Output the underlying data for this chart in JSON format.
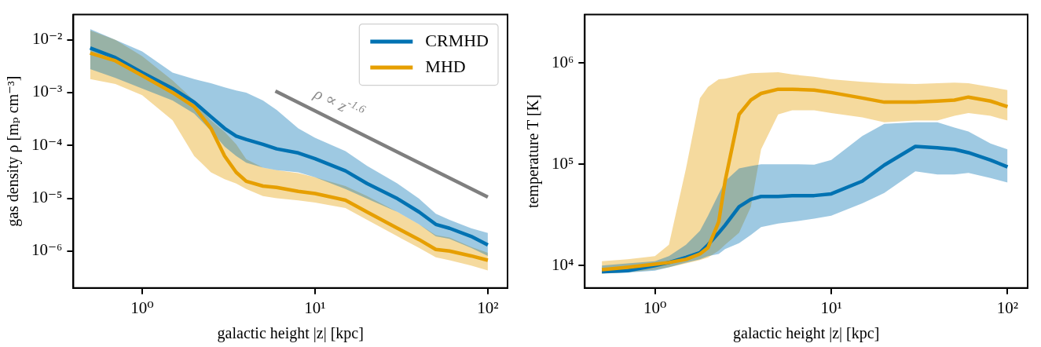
{
  "chart_data": [
    {
      "type": "line",
      "log": "xy",
      "grid": false,
      "legend": "top right",
      "xlabel": "galactic height |z| [kpc]",
      "ylabel": "gas density ρ [mₚ cm⁻³]",
      "xlim": [
        0.4,
        130
      ],
      "ylim": [
        2e-07,
        0.03
      ],
      "xticks": [
        {
          "value": 1,
          "label": "10⁰"
        },
        {
          "value": 10,
          "label": "10¹"
        },
        {
          "value": 100,
          "label": "10²"
        }
      ],
      "yticks": [
        {
          "value": 1e-06,
          "label": "10⁻⁶"
        },
        {
          "value": 1e-05,
          "label": "10⁻⁵"
        },
        {
          "value": 0.0001,
          "label": "10⁻⁴"
        },
        {
          "value": 0.001,
          "label": "10⁻³"
        },
        {
          "value": 0.01,
          "label": "10⁻²"
        }
      ],
      "x": [
        0.5,
        0.7,
        1,
        1.5,
        2,
        2.5,
        3,
        3.5,
        4,
        5,
        6,
        8,
        10,
        15,
        20,
        30,
        40,
        50,
        60,
        80,
        100
      ],
      "series": [
        {
          "name": "CRMHD",
          "color": "#0072b2",
          "values": [
            0.007,
            0.0046,
            0.0024,
            0.0012,
            0.00066,
            0.00035,
            0.00021,
            0.00015,
            0.00013,
            0.000105,
            8.6e-05,
            7.2e-05,
            5.6e-05,
            3.3e-05,
            1.9e-05,
            9.8e-06,
            5.5e-06,
            3.2e-06,
            2.7e-06,
            1.9e-06,
            1.3e-06
          ],
          "upper": [
            0.016,
            0.01,
            0.006,
            0.0024,
            0.0018,
            0.0015,
            0.00126,
            0.0011,
            0.001,
            0.00071,
            0.00047,
            0.00021,
            0.00014,
            7.8e-05,
            4.1e-05,
            1.9e-05,
            9.8e-06,
            5.1e-06,
            3.9e-06,
            2.7e-06,
            2.2e-06
          ],
          "lower": [
            0.0028,
            0.0019,
            0.0012,
            0.00071,
            0.0004,
            0.00019,
            9.5e-05,
            6.3e-05,
            4.7e-05,
            3.8e-05,
            3.4e-05,
            3.1e-05,
            2.5e-05,
            1.5e-05,
            9.8e-06,
            5.5e-06,
            3.2e-06,
            1.9e-06,
            1.7e-06,
            1.15e-06,
            8.1e-07
          ]
        },
        {
          "name": "MHD",
          "color": "#e69f00",
          "values": [
            0.0056,
            0.004,
            0.0021,
            0.001,
            0.00054,
            0.00021,
            6.3e-05,
            3.1e-05,
            2.1e-05,
            1.7e-05,
            1.6e-05,
            1.35e-05,
            1.23e-05,
            9.2e-06,
            5.5e-06,
            2.7e-06,
            1.65e-06,
            1.07e-06,
            1e-06,
            8.1e-07,
            6.7e-07
          ],
          "upper": [
            0.015,
            0.01,
            0.0049,
            0.0017,
            0.00071,
            0.0003,
            0.00018,
            0.000105,
            5.5e-05,
            3.8e-05,
            3.4e-05,
            3e-05,
            2.5e-05,
            1.7e-05,
            1.1e-05,
            5.5e-06,
            3.2e-06,
            2e-06,
            1.8e-06,
            1.2e-06,
            9.3e-07
          ],
          "lower": [
            0.0018,
            0.00145,
            0.00089,
            0.0003,
            6.3e-05,
            3.1e-05,
            2.3e-05,
            1.9e-05,
            1.5e-05,
            1.1e-05,
            1e-05,
            9.1e-06,
            8.3e-06,
            6.5e-06,
            3.9e-06,
            1.9e-06,
            1.15e-06,
            7.6e-07,
            6.7e-07,
            5.3e-07,
            4.3e-07
          ]
        },
        {
          "type": "line",
          "color": "#7f7f7f",
          "x": [
            5.9,
            100
          ],
          "values": [
            0.00107,
            1.05e-05
          ]
        }
      ],
      "annotations": [
        "ρ ∝ z$^{-1.6}$"
      ]
    },
    {
      "type": "line",
      "log": "xy",
      "grid": false,
      "xlabel": "galactic height |z| [kpc]",
      "ylabel": "temperature T [K]",
      "xlim": [
        0.4,
        130
      ],
      "ylim": [
        6000,
        3000000
      ],
      "xticks": [
        {
          "value": 1,
          "label": "10⁰"
        },
        {
          "value": 10,
          "label": "10¹"
        },
        {
          "value": 100,
          "label": "10²"
        }
      ],
      "yticks": [
        {
          "value": 10000,
          "label": "10⁴"
        },
        {
          "value": 100000,
          "label": "10⁵"
        },
        {
          "value": 1000000,
          "label": "10⁶"
        }
      ],
      "x": [
        0.5,
        0.7,
        1,
        1.2,
        1.5,
        1.8,
        2,
        2.3,
        2.5,
        3,
        3.5,
        4,
        5,
        6,
        8,
        10,
        15,
        20,
        30,
        40,
        50,
        60,
        80,
        100
      ],
      "series": [
        {
          "color": "#0072b2",
          "values": [
            8700.0,
            8900.0,
            10000.0,
            10700.0,
            12000.0,
            13400.0,
            16000.0,
            21000.0,
            25000.0,
            38000.0,
            45000.0,
            48000.0,
            48000.0,
            49000.0,
            49000.0,
            51000.0,
            68000.0,
            98000.0,
            150000.0,
            145000.0,
            140000.0,
            130000.0,
            110000.0,
            94000.0
          ],
          "upper": [
            10000.0,
            10500.0,
            11000.0,
            12400.0,
            16000.0,
            22000.0,
            31000.0,
            51000.0,
            68000.0,
            91000.0,
            96000.0,
            100000.0,
            100000.0,
            100000.0,
            99000.0,
            110000.0,
            190000.0,
            250000.0,
            260000.0,
            260000.0,
            230000.0,
            210000.0,
            160000.0,
            140000.0
          ],
          "lower": [
            8300.0,
            8500.0,
            8900.0,
            9600.0,
            10700.0,
            11500.0,
            12400.0,
            13000.0,
            14500.0,
            16600.0,
            20000.0,
            24000.0,
            26000.0,
            27000.0,
            29000.0,
            31000.0,
            41000.0,
            52000.0,
            85000.0,
            79000.0,
            79000.0,
            82000.0,
            73000.0,
            66000.0
          ]
        },
        {
          "color": "#e69f00",
          "values": [
            9100.0,
            9600.0,
            10300.0,
            10700.0,
            11500.0,
            13000.0,
            15000.0,
            27000.0,
            68000.0,
            310000.0,
            430000.0,
            500000.0,
            550000.0,
            550000.0,
            540000.0,
            510000.0,
            450000.0,
            410000.0,
            410000.0,
            420000.0,
            430000.0,
            460000.0,
            420000.0,
            370000.0
          ],
          "upper": [
            11000.0,
            11500.0,
            12400.0,
            16000.0,
            91000.0,
            450000.0,
            580000.0,
            690000.0,
            700000.0,
            750000.0,
            790000.0,
            800000.0,
            810000.0,
            770000.0,
            730000.0,
            690000.0,
            650000.0,
            630000.0,
            620000.0,
            630000.0,
            640000.0,
            630000.0,
            580000.0,
            540000.0
          ],
          "lower": [
            8300.0,
            8600.0,
            9100.0,
            9600.0,
            10500.0,
            11300.0,
            12000.0,
            14000.0,
            16000.0,
            21000.0,
            38000.0,
            140000.0,
            310000.0,
            340000.0,
            340000.0,
            320000.0,
            290000.0,
            260000.0,
            270000.0,
            270000.0,
            300000.0,
            320000.0,
            300000.0,
            270000.0
          ]
        }
      ]
    }
  ]
}
